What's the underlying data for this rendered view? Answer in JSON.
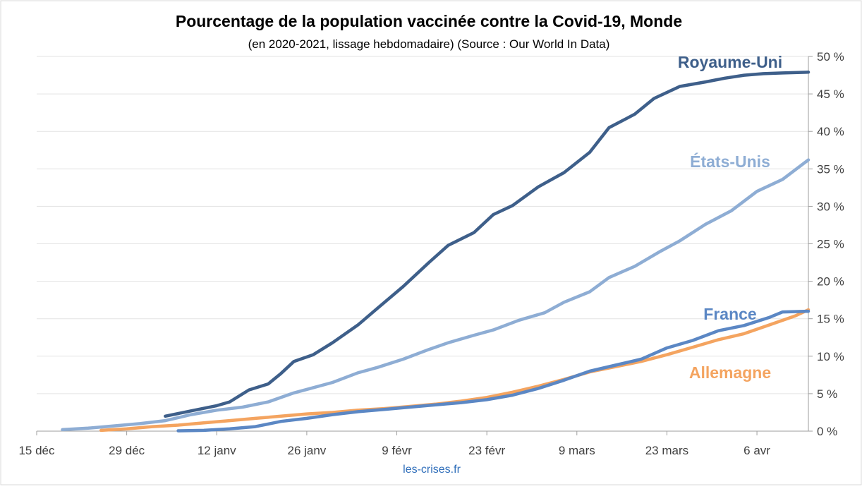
{
  "chart_data": {
    "type": "line",
    "title": "Pourcentage de la population vaccinée contre la Covid-19, Monde",
    "subtitle": "(en 2020-2021, lissage hebdomadaire) (Source : Our World In Data)",
    "credit": "les-crises.fr",
    "xlabel": "",
    "ylabel": "",
    "x_ticks": [
      "15 déc",
      "29 déc",
      "12 janv",
      "26 janv",
      "9 févr",
      "23 févr",
      "9 mars",
      "23 mars",
      "6 avr"
    ],
    "y_ticks": [
      "0 %",
      "5 %",
      "10 %",
      "15 %",
      "20 %",
      "25 %",
      "30 %",
      "35 %",
      "40 %",
      "45 %",
      "50 %"
    ],
    "ylim": [
      0,
      50
    ],
    "x_axis": "days, 0 = 15 déc 2020",
    "xlim": [
      0,
      120
    ],
    "grid": "horizontal",
    "y_axis_side": "right",
    "series": [
      {
        "name": "Royaume-Uni",
        "color": "#3E5F8A",
        "x": [
          20,
          24,
          28,
          30,
          33,
          36,
          38,
          40,
          43,
          46,
          50,
          53,
          57,
          61,
          64,
          68,
          71,
          74,
          78,
          82,
          86,
          89,
          93,
          96,
          100,
          104,
          107,
          110,
          113,
          116,
          120
        ],
        "y": [
          2.0,
          2.7,
          3.4,
          3.9,
          5.5,
          6.3,
          7.7,
          9.3,
          10.2,
          11.8,
          14.2,
          16.4,
          19.3,
          22.5,
          24.8,
          26.5,
          28.9,
          30.1,
          32.6,
          34.5,
          37.2,
          40.5,
          42.3,
          44.4,
          46.0,
          46.6,
          47.1,
          47.5,
          47.7,
          47.8,
          47.9
        ]
      },
      {
        "name": "États-Unis",
        "color": "#8EADD4",
        "x": [
          4,
          8,
          12,
          16,
          20,
          24,
          28,
          32,
          36,
          40,
          43,
          46,
          50,
          53,
          57,
          61,
          64,
          68,
          71,
          75,
          79,
          82,
          86,
          89,
          93,
          97,
          100,
          104,
          108,
          112,
          116,
          120
        ],
        "y": [
          0.2,
          0.4,
          0.7,
          1.0,
          1.4,
          2.2,
          2.8,
          3.2,
          3.9,
          5.1,
          5.8,
          6.5,
          7.8,
          8.5,
          9.6,
          10.9,
          11.8,
          12.8,
          13.5,
          14.8,
          15.8,
          17.2,
          18.6,
          20.5,
          22.0,
          24.0,
          25.4,
          27.6,
          29.4,
          32.0,
          33.6,
          36.2
        ]
      },
      {
        "name": "France",
        "color": "#5B87C4",
        "x": [
          22,
          26,
          30,
          34,
          38,
          42,
          46,
          50,
          54,
          58,
          62,
          66,
          70,
          74,
          78,
          82,
          86,
          90,
          94,
          98,
          102,
          106,
          110,
          114,
          116,
          120
        ],
        "y": [
          0.05,
          0.1,
          0.3,
          0.6,
          1.3,
          1.7,
          2.2,
          2.6,
          2.9,
          3.2,
          3.5,
          3.8,
          4.2,
          4.8,
          5.7,
          6.8,
          8.0,
          8.8,
          9.6,
          11.1,
          12.1,
          13.4,
          14.1,
          15.2,
          15.9,
          16.0
        ]
      },
      {
        "name": "Allemagne",
        "color": "#F4A460",
        "x": [
          10,
          14,
          18,
          22,
          26,
          30,
          34,
          38,
          42,
          46,
          50,
          54,
          58,
          62,
          66,
          70,
          74,
          78,
          82,
          86,
          90,
          94,
          98,
          102,
          106,
          110,
          114,
          118,
          120
        ],
        "y": [
          0.1,
          0.3,
          0.6,
          0.8,
          1.1,
          1.4,
          1.7,
          2.0,
          2.3,
          2.5,
          2.8,
          3.0,
          3.3,
          3.6,
          4.0,
          4.5,
          5.2,
          6.0,
          6.9,
          7.9,
          8.6,
          9.3,
          10.2,
          11.2,
          12.2,
          13.0,
          14.2,
          15.4,
          16.2
        ]
      }
    ],
    "series_labels": [
      {
        "text": "Royaume-Uni",
        "color": "#3E5F8A"
      },
      {
        "text": "États-Unis",
        "color": "#8EADD4"
      },
      {
        "text": "France",
        "color": "#5B87C4"
      },
      {
        "text": "Allemagne",
        "color": "#F4A460"
      }
    ]
  }
}
